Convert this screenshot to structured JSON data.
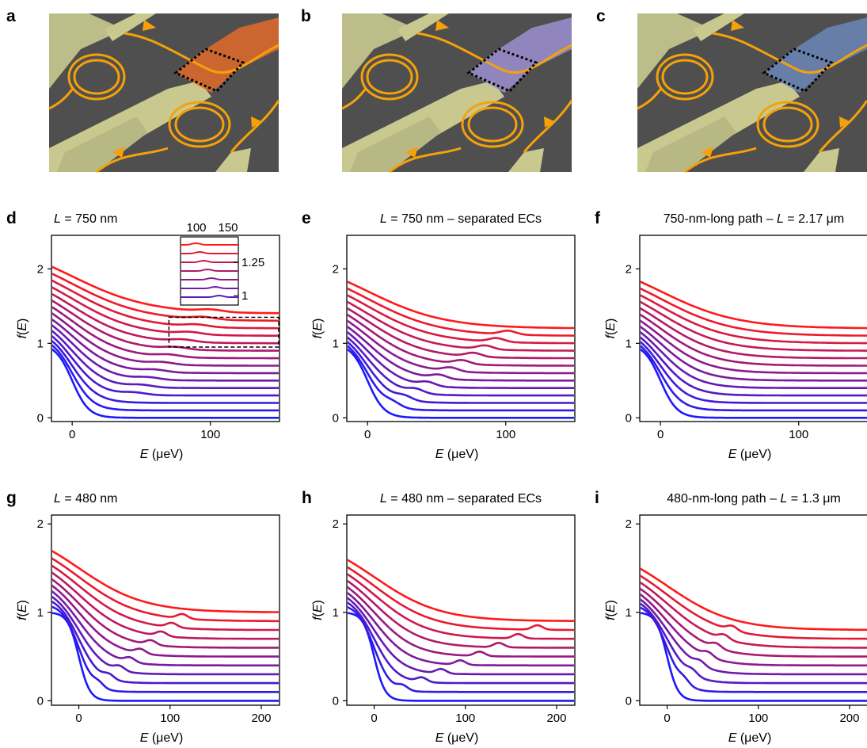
{
  "figure": {
    "panel_labels": [
      "a",
      "b",
      "c",
      "d",
      "e",
      "f",
      "g",
      "h",
      "i"
    ],
    "images": [
      {
        "label": "a",
        "description_color": "#e06a2c",
        "ec_color": "#f5a10a"
      },
      {
        "label": "b",
        "description_color": "#9b8fd0",
        "ec_color": "#f5a10a"
      },
      {
        "label": "c",
        "description_color": "#6b86b8",
        "ec_color": "#f5a10a"
      }
    ],
    "curve_colors": {
      "start": "#1a1aff",
      "end": "#ff1a1a"
    }
  },
  "chart_data": [
    {
      "panel": "d",
      "type": "line",
      "title_italic": "L",
      "title_rest": " = 750 nm",
      "xlabel_italic": "E",
      "xlabel_rest": " (μeV)",
      "ylabel_italic": "f",
      "ylabel_rest": "(E)",
      "xlim": [
        -15,
        150
      ],
      "ylim": [
        -0.05,
        2.45
      ],
      "xticks": [
        0,
        100
      ],
      "yticks": [
        0,
        1,
        2
      ],
      "n_curves": 15,
      "offset_step": 0.1,
      "start_height": 1.0,
      "feature": "hump",
      "inset": {
        "xticks": [
          "100",
          "150"
        ],
        "yticks": [
          "1.25",
          "1"
        ],
        "xlim": [
          70,
          150
        ],
        "ylim": [
          0.95,
          1.35
        ]
      }
    },
    {
      "panel": "e",
      "type": "line",
      "title_italic": "L",
      "title_rest": " = 750 nm – separated ECs",
      "xlabel_italic": "E",
      "xlabel_rest": " (μeV)",
      "ylabel_italic": "f",
      "ylabel_rest": "(E)",
      "xlim": [
        -15,
        150
      ],
      "ylim": [
        -0.05,
        2.45
      ],
      "xticks": [
        0,
        100
      ],
      "yticks": [
        0,
        1,
        2
      ],
      "n_curves": 13,
      "offset_step": 0.1,
      "start_height": 1.0,
      "feature": "peak",
      "peak_max_x": 100
    },
    {
      "panel": "f",
      "type": "line",
      "title_rest": "750-nm-long path – ",
      "title_italic": "L",
      "title_rest2": " = 2.17 μm",
      "xlabel_italic": "E",
      "xlabel_rest": " (μeV)",
      "ylabel_italic": "f",
      "ylabel_rest": "(E)",
      "xlim": [
        -15,
        150
      ],
      "ylim": [
        -0.05,
        2.45
      ],
      "xticks": [
        0,
        100
      ],
      "yticks": [
        0,
        1,
        2
      ],
      "n_curves": 13,
      "offset_step": 0.1,
      "start_height": 1.0,
      "feature": "none"
    },
    {
      "panel": "g",
      "type": "line",
      "title_italic": "L",
      "title_rest": " = 480 nm",
      "xlabel_italic": "E",
      "xlabel_rest": " (μeV)",
      "ylabel_italic": "f",
      "ylabel_rest": "(E)",
      "xlim": [
        -30,
        220
      ],
      "ylim": [
        -0.05,
        2.1
      ],
      "xticks": [
        0,
        100,
        200
      ],
      "yticks": [
        0,
        1,
        2
      ],
      "n_curves": 11,
      "offset_step": 0.1,
      "start_height": 1.0,
      "feature": "peak",
      "peak_max_x": 115
    },
    {
      "panel": "h",
      "type": "line",
      "title_italic": "L",
      "title_rest": " = 480 nm – separated ECs",
      "xlabel_italic": "E",
      "xlabel_rest": " (μeV)",
      "ylabel_italic": "f",
      "ylabel_rest": "(E)",
      "xlim": [
        -30,
        220
      ],
      "ylim": [
        -0.05,
        2.1
      ],
      "xticks": [
        0,
        100,
        200
      ],
      "yticks": [
        0,
        1,
        2
      ],
      "n_curves": 10,
      "offset_step": 0.1,
      "start_height": 1.0,
      "feature": "peak",
      "peak_max_x": 190
    },
    {
      "panel": "i",
      "type": "line",
      "title_rest": "480-nm-long path – ",
      "title_italic": "L",
      "title_rest2": " = 1.3 μm",
      "xlabel_italic": "E",
      "xlabel_rest": " (μeV)",
      "ylabel_italic": "f",
      "ylabel_rest": "(E)",
      "xlim": [
        -30,
        220
      ],
      "ylim": [
        -0.05,
        2.1
      ],
      "xticks": [
        0,
        100,
        200
      ],
      "yticks": [
        0,
        1,
        2
      ],
      "n_curves": 9,
      "offset_step": 0.1,
      "start_height": 1.0,
      "feature": "peak",
      "peak_max_x": 70
    }
  ]
}
